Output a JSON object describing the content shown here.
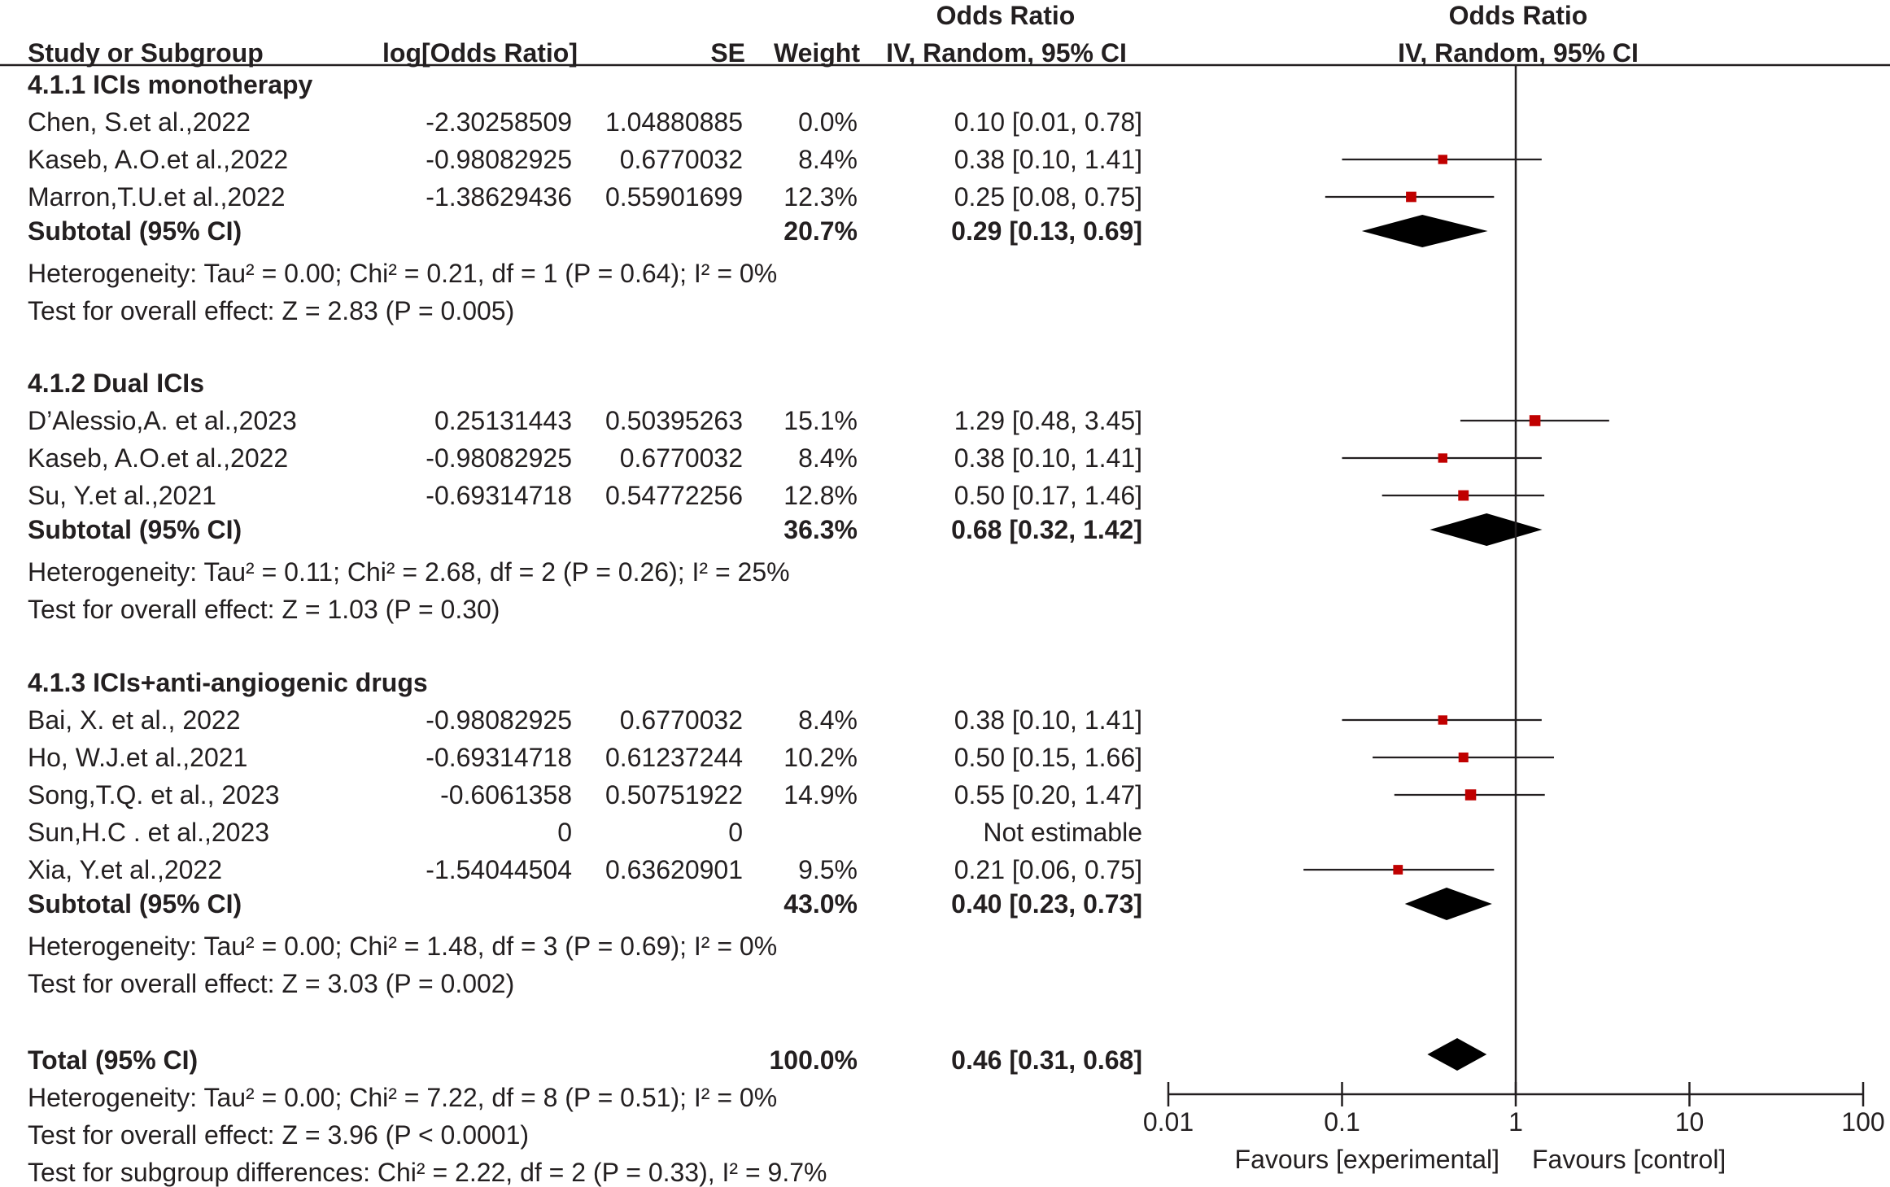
{
  "chart_data": {
    "type": "forest",
    "measure": "Odds Ratio",
    "method": "IV, Random, 95% CI",
    "scale": "log",
    "xlim": [
      0.01,
      100
    ],
    "ticks": [
      "0.01",
      "0.1",
      "1",
      "10",
      "100"
    ],
    "tick_values": [
      0.01,
      0.1,
      1,
      10,
      100
    ],
    "favours_left": "Favours [experimental]",
    "favours_right": "Favours [control]",
    "headers": {
      "study": "Study or Subgroup",
      "log_or": "log[Odds Ratio]",
      "se": "SE",
      "weight": "Weight",
      "or_top": "Odds Ratio",
      "or_bottom": "IV, Random, 95% CI",
      "plot_top": "Odds Ratio",
      "plot_bottom": "IV, Random, 95% CI"
    },
    "point_color": "#c00000",
    "diamond_color": "#000000",
    "subgroups": [
      {
        "title": "4.1.1 ICIs monotherapy",
        "studies": [
          {
            "name": "Chen, S.et al.,2022",
            "log_or": "-2.30258509",
            "se": "1.04880885",
            "weight": "0.0%",
            "ci_text": "0.10 [0.01, 0.78]",
            "or": 0.1,
            "lo": 0.01,
            "hi": 0.78,
            "w": 0.0
          },
          {
            "name": "Kaseb, A.O.et al.,2022",
            "log_or": "-0.98082925",
            "se": "0.6770032",
            "weight": "8.4%",
            "ci_text": "0.38 [0.10, 1.41]",
            "or": 0.38,
            "lo": 0.1,
            "hi": 1.41,
            "w": 8.4
          },
          {
            "name": "Marron,T.U.et al.,2022",
            "log_or": "-1.38629436",
            "se": "0.55901699",
            "weight": "12.3%",
            "ci_text": "0.25 [0.08, 0.75]",
            "or": 0.25,
            "lo": 0.08,
            "hi": 0.75,
            "w": 12.3
          }
        ],
        "subtotal": {
          "label": "Subtotal (95% CI)",
          "weight": "20.7%",
          "ci_text": "0.29 [0.13, 0.69]",
          "or": 0.29,
          "lo": 0.13,
          "hi": 0.69
        },
        "heterogeneity": "Heterogeneity: Tau² = 0.00; Chi² = 0.21, df = 1 (P = 0.64); I² = 0%",
        "overall": "Test for overall effect: Z = 2.83 (P = 0.005)"
      },
      {
        "title": "4.1.2 Dual ICIs",
        "studies": [
          {
            "name": "D’Alessio,A. et al.,2023",
            "log_or": "0.25131443",
            "se": "0.50395263",
            "weight": "15.1%",
            "ci_text": "1.29 [0.48, 3.45]",
            "or": 1.29,
            "lo": 0.48,
            "hi": 3.45,
            "w": 15.1
          },
          {
            "name": "Kaseb, A.O.et al.,2022",
            "log_or": "-0.98082925",
            "se": "0.6770032",
            "weight": "8.4%",
            "ci_text": "0.38 [0.10, 1.41]",
            "or": 0.38,
            "lo": 0.1,
            "hi": 1.41,
            "w": 8.4
          },
          {
            "name": "Su, Y.et al.,2021",
            "log_or": "-0.69314718",
            "se": "0.54772256",
            "weight": "12.8%",
            "ci_text": "0.50 [0.17, 1.46]",
            "or": 0.5,
            "lo": 0.17,
            "hi": 1.46,
            "w": 12.8
          }
        ],
        "subtotal": {
          "label": "Subtotal (95% CI)",
          "weight": "36.3%",
          "ci_text": "0.68 [0.32, 1.42]",
          "or": 0.68,
          "lo": 0.32,
          "hi": 1.42
        },
        "heterogeneity": "Heterogeneity: Tau² = 0.11; Chi² = 2.68, df = 2 (P = 0.26); I² = 25%",
        "overall": "Test for overall effect: Z = 1.03 (P = 0.30)"
      },
      {
        "title": "4.1.3 ICIs+anti-angiogenic drugs",
        "studies": [
          {
            "name": "Bai, X. et al., 2022",
            "log_or": "-0.98082925",
            "se": "0.6770032",
            "weight": "8.4%",
            "ci_text": "0.38 [0.10, 1.41]",
            "or": 0.38,
            "lo": 0.1,
            "hi": 1.41,
            "w": 8.4
          },
          {
            "name": "Ho, W.J.et al.,2021",
            "log_or": "-0.69314718",
            "se": "0.61237244",
            "weight": "10.2%",
            "ci_text": "0.50 [0.15, 1.66]",
            "or": 0.5,
            "lo": 0.15,
            "hi": 1.66,
            "w": 10.2
          },
          {
            "name": "Song,T.Q. et al., 2023",
            "log_or": "-0.6061358",
            "se": "0.50751922",
            "weight": "14.9%",
            "ci_text": "0.55 [0.20, 1.47]",
            "or": 0.55,
            "lo": 0.2,
            "hi": 1.47,
            "w": 14.9
          },
          {
            "name": "Sun,H.C . et al.,2023",
            "log_or": "0",
            "se": "0",
            "weight": "",
            "ci_text": "Not estimable",
            "or": null,
            "lo": null,
            "hi": null,
            "w": null
          },
          {
            "name": "Xia, Y.et al.,2022",
            "log_or": "-1.54044504",
            "se": "0.63620901",
            "weight": "9.5%",
            "ci_text": "0.21 [0.06, 0.75]",
            "or": 0.21,
            "lo": 0.06,
            "hi": 0.75,
            "w": 9.5
          }
        ],
        "subtotal": {
          "label": "Subtotal (95% CI)",
          "weight": "43.0%",
          "ci_text": "0.40 [0.23, 0.73]",
          "or": 0.4,
          "lo": 0.23,
          "hi": 0.73
        },
        "heterogeneity": "Heterogeneity: Tau² = 0.00; Chi² = 1.48, df = 3 (P = 0.69); I² = 0%",
        "overall": "Test for overall effect: Z = 3.03 (P = 0.002)"
      }
    ],
    "total": {
      "label": "Total (95% CI)",
      "weight": "100.0%",
      "ci_text": "0.46 [0.31, 0.68]",
      "or": 0.46,
      "lo": 0.31,
      "hi": 0.68,
      "heterogeneity": "Heterogeneity: Tau² = 0.00; Chi² = 7.22, df = 8 (P = 0.51); I² = 0%",
      "overall": "Test for overall effect: Z = 3.96 (P < 0.0001)",
      "subgroup_diff": "Test for subgroup differences: Chi² = 2.22, df = 2 (P = 0.33), I² = 9.7%"
    }
  }
}
